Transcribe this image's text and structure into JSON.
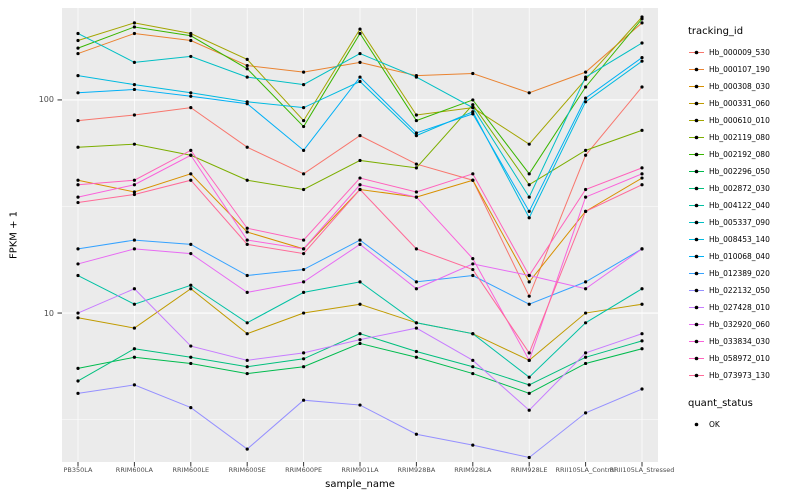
{
  "chart_data": {
    "type": "line",
    "title": "",
    "xlabel": "sample_name",
    "ylabel": "FPKM + 1",
    "y_scale": "log10",
    "ylim": [
      2,
      270
    ],
    "yticks": [
      10,
      100
    ],
    "ytick_labels": [
      "10",
      "100"
    ],
    "minor_yticks": [
      3.162,
      31.623
    ],
    "grid": true,
    "panel_background": "#EBEBEB",
    "gridline_color": "#FFFFFF",
    "tick_color": "#333333",
    "marker_color": "#000000",
    "legend_title": "tracking_id",
    "legend_position": "right",
    "quant_status": {
      "title": "quant_status",
      "items": [
        {
          "label": "OK",
          "marker": "black-point"
        }
      ]
    },
    "categories": [
      "PB350LA",
      "RRIM600LA",
      "RRIM600LE",
      "RRIM600SE",
      "RRIM600PE",
      "RRIM901LA",
      "RRIM928BA",
      "RRIM928LA",
      "RRIM928LE",
      "RRII105LA_Control",
      "RRII105LA_Stressed"
    ],
    "series": [
      {
        "name": "Hb_000009_530",
        "color": "#F8766D",
        "values": [
          80,
          85,
          92,
          60,
          45,
          68,
          50,
          42,
          12,
          55,
          115
        ]
      },
      {
        "name": "Hb_000107_190",
        "color": "#EA8331",
        "values": [
          165,
          205,
          190,
          145,
          135,
          150,
          130,
          133,
          108,
          135,
          230
        ]
      },
      {
        "name": "Hb_000308_030",
        "color": "#D89000",
        "values": [
          42,
          37,
          45,
          24,
          20,
          38,
          35,
          42,
          14,
          30,
          43
        ]
      },
      {
        "name": "Hb_000331_060",
        "color": "#C09B00",
        "values": [
          9.5,
          8.5,
          13,
          8,
          10,
          11,
          9,
          8,
          6,
          10,
          11
        ]
      },
      {
        "name": "Hb_000610_010",
        "color": "#A3A500",
        "values": [
          190,
          230,
          205,
          155,
          80,
          215,
          85,
          92,
          62,
          125,
          245
        ]
      },
      {
        "name": "Hb_002119_080",
        "color": "#7CAE00",
        "values": [
          60,
          62,
          55,
          42,
          38,
          52,
          48,
          95,
          40,
          58,
          72
        ]
      },
      {
        "name": "Hb_002192_080",
        "color": "#39B600",
        "values": [
          175,
          220,
          200,
          140,
          75,
          205,
          80,
          100,
          45,
          115,
          240
        ]
      },
      {
        "name": "Hb_002296_050",
        "color": "#00BB4E",
        "values": [
          5.5,
          6.2,
          5.8,
          5.2,
          5.6,
          7.2,
          6.2,
          5.2,
          4.2,
          5.8,
          6.8
        ]
      },
      {
        "name": "Hb_002872_030",
        "color": "#00BF7D",
        "values": [
          4.8,
          6.8,
          6.2,
          5.6,
          6.1,
          8,
          6.6,
          5.6,
          4.6,
          6.2,
          7.4
        ]
      },
      {
        "name": "Hb_004122_040",
        "color": "#00C1A3",
        "values": [
          15,
          11,
          13.5,
          9,
          12.5,
          14,
          9,
          8,
          5,
          9,
          13
        ]
      },
      {
        "name": "Hb_005337_090",
        "color": "#00BFC4",
        "values": [
          205,
          150,
          160,
          128,
          118,
          165,
          128,
          92,
          35,
          128,
          185
        ]
      },
      {
        "name": "Hb_008453_140",
        "color": "#00BAE0",
        "values": [
          130,
          118,
          108,
          98,
          92,
          122,
          68,
          88,
          28,
          98,
          152
        ]
      },
      {
        "name": "Hb_010068_040",
        "color": "#00B0F6",
        "values": [
          108,
          112,
          104,
          96,
          58,
          128,
          70,
          86,
          30,
          102,
          158
        ]
      },
      {
        "name": "Hb_012389_020",
        "color": "#35A2FF",
        "values": [
          20,
          22,
          21,
          15,
          16,
          22,
          14,
          15,
          11,
          14,
          20
        ]
      },
      {
        "name": "Hb_022132_050",
        "color": "#9590FF",
        "values": [
          4.2,
          4.6,
          3.6,
          2.3,
          3.9,
          3.7,
          2.7,
          2.4,
          2.1,
          3.4,
          4.4
        ]
      },
      {
        "name": "Hb_027428_010",
        "color": "#C77CFF",
        "values": [
          10,
          13,
          7,
          6,
          6.5,
          7.5,
          8.5,
          6,
          3.5,
          6.5,
          8
        ]
      },
      {
        "name": "Hb_032920_060",
        "color": "#E76BF3",
        "values": [
          17,
          20,
          19,
          12.5,
          14,
          21,
          13,
          17,
          15,
          13,
          20
        ]
      },
      {
        "name": "Hb_033834_030",
        "color": "#FA62DB",
        "values": [
          35,
          40,
          55,
          22,
          20,
          40,
          35,
          18,
          6,
          35,
          45
        ]
      },
      {
        "name": "Hb_058972_010",
        "color": "#FF62BC",
        "values": [
          40,
          42,
          58,
          25,
          22,
          43,
          37,
          45,
          15,
          38,
          48
        ]
      },
      {
        "name": "Hb_073973_130",
        "color": "#FF6A98",
        "values": [
          33,
          36,
          42,
          21,
          19,
          38,
          20,
          16,
          6.5,
          30,
          40
        ]
      }
    ]
  }
}
